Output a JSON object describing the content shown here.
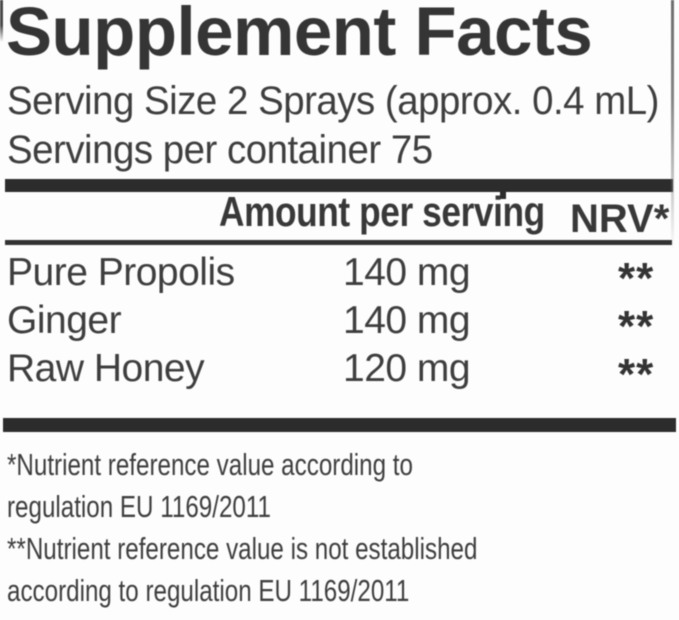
{
  "supplement_label": {
    "title": "Supplement Facts",
    "serving_size": "Serving Size 2 Sprays (approx. 0.4 mL)",
    "servings_per_container": "Servings per container 75",
    "table": {
      "amount_header": "Amount per serving",
      "nrv_header": "NRV*",
      "rows": [
        {
          "name": "Pure Propolis",
          "amount": "140 mg",
          "nrv": "**"
        },
        {
          "name": "Ginger",
          "amount": "140 mg",
          "nrv": "**"
        },
        {
          "name": "Raw Honey",
          "amount": "120 mg",
          "nrv": "**"
        }
      ]
    },
    "footnotes": [
      {
        "lines": [
          "*Nutrient reference value according to",
          "regulation EU 1169/2011"
        ]
      },
      {
        "lines": [
          "**Nutrient reference value is not established",
          "according to regulation EU 1169/2011"
        ]
      }
    ],
    "colors": {
      "text": "#3e3e3e",
      "title": "#353535",
      "rule": "#2c2c2c",
      "background": "#fdfdfd"
    }
  }
}
